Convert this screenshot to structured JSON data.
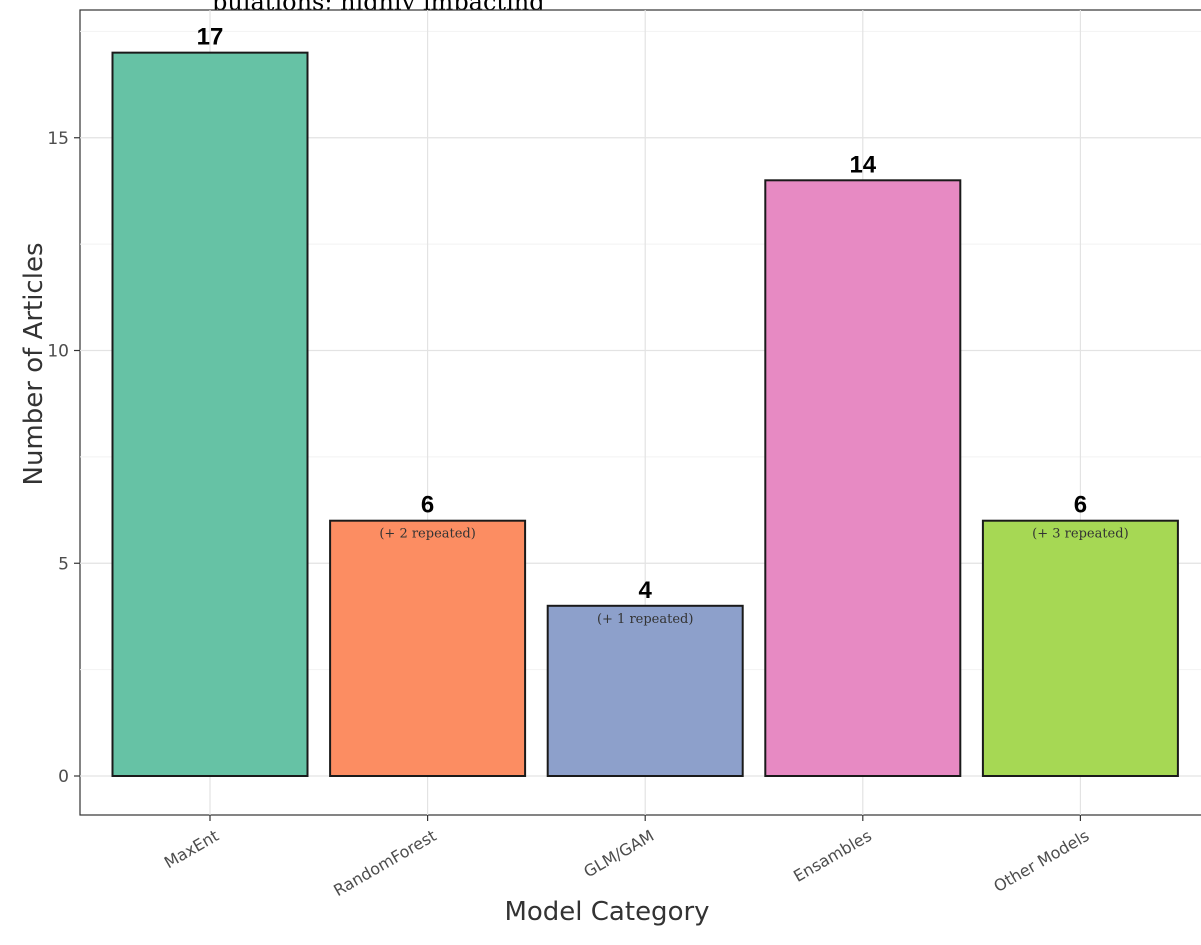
{
  "caption": "pulations; highly impacting",
  "chart_data": {
    "type": "bar",
    "xlabel": "Model Category",
    "ylabel": "Number of Articles",
    "categories": [
      "MaxEnt",
      "RandomForest",
      "GLM/GAM",
      "Ensambles",
      "Other Models"
    ],
    "values": [
      17,
      6,
      4,
      14,
      6
    ],
    "value_labels": [
      "17",
      "6",
      "4",
      "14",
      "6"
    ],
    "notes": [
      "",
      "(+ 2 repeated)",
      "(+ 1 repeated)",
      "",
      "(+ 3 repeated)"
    ],
    "colors": [
      "#66c2a5",
      "#fc8d62",
      "#8da0cb",
      "#e78ac3",
      "#a6d854"
    ],
    "ylim": [
      -0.8,
      18
    ],
    "yticks": [
      0,
      5,
      10,
      15
    ],
    "ytick_labels": [
      "0",
      "5",
      "10",
      "15"
    ],
    "grid": true,
    "legend": "none"
  }
}
